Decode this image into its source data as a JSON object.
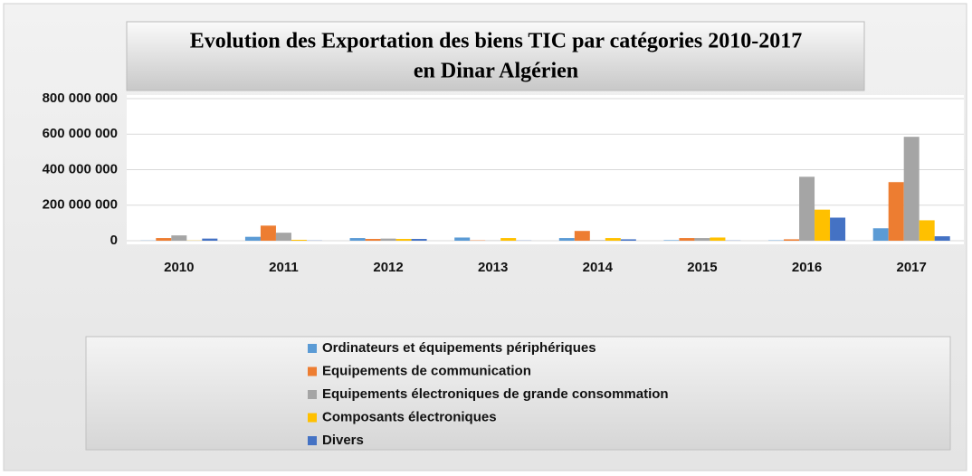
{
  "chart_data": {
    "type": "bar",
    "title": [
      "Evolution des Exportation des biens TIC par catégories 2010-2017",
      "en Dinar Algérien"
    ],
    "categories": [
      "2010",
      "2011",
      "2012",
      "2013",
      "2014",
      "2015",
      "2016",
      "2017"
    ],
    "series": [
      {
        "name": "Ordinateurs et équipements périphériques",
        "color": "#5b9bd5",
        "values": [
          1000000,
          22000000,
          15000000,
          18000000,
          15000000,
          3000000,
          2000000,
          70000000
        ]
      },
      {
        "name": "Equipements de communication",
        "color": "#ed7d31",
        "values": [
          15000000,
          85000000,
          10000000,
          2000000,
          55000000,
          15000000,
          8000000,
          330000000
        ]
      },
      {
        "name": "Equipements électroniques de grande consommation",
        "color": "#a5a5a5",
        "values": [
          30000000,
          45000000,
          12000000,
          1000000,
          3000000,
          15000000,
          360000000,
          585000000
        ]
      },
      {
        "name": "Composants électroniques",
        "color": "#ffc000",
        "values": [
          1000000,
          5000000,
          10000000,
          15000000,
          15000000,
          18000000,
          175000000,
          115000000
        ]
      },
      {
        "name": "Divers",
        "color": "#4472c4",
        "values": [
          12000000,
          1000000,
          10000000,
          1000000,
          8000000,
          1000000,
          130000000,
          25000000
        ]
      }
    ],
    "ylim": [
      0,
      800000000
    ],
    "yticks": [
      0,
      {
        "value": 200000000,
        "label": "200 000 000"
      },
      {
        "value": 400000000,
        "label": "400 000 000"
      },
      {
        "value": 600000000,
        "label": "600 000 000"
      },
      {
        "value": 800000000,
        "label": "800 000 000"
      }
    ],
    "grid": true
  }
}
